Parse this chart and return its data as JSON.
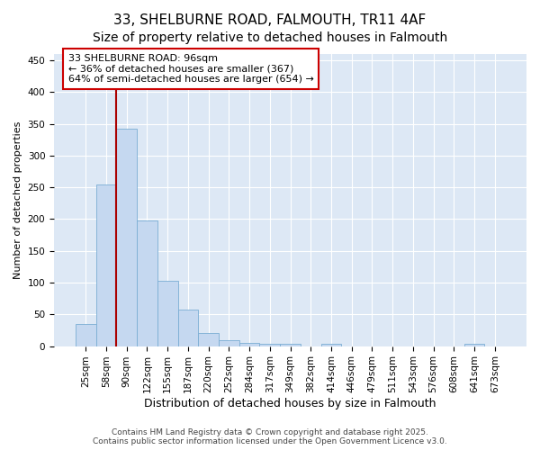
{
  "title": "33, SHELBURNE ROAD, FALMOUTH, TR11 4AF",
  "subtitle": "Size of property relative to detached houses in Falmouth",
  "xlabel": "Distribution of detached houses by size in Falmouth",
  "ylabel": "Number of detached properties",
  "categories": [
    "25sqm",
    "58sqm",
    "90sqm",
    "122sqm",
    "155sqm",
    "187sqm",
    "220sqm",
    "252sqm",
    "284sqm",
    "317sqm",
    "349sqm",
    "382sqm",
    "414sqm",
    "446sqm",
    "479sqm",
    "511sqm",
    "543sqm",
    "576sqm",
    "608sqm",
    "641sqm",
    "673sqm"
  ],
  "values": [
    35,
    255,
    342,
    198,
    103,
    57,
    20,
    10,
    5,
    4,
    3,
    0,
    3,
    0,
    0,
    0,
    0,
    0,
    0,
    4,
    0
  ],
  "bar_color": "#c5d8f0",
  "bar_edge_color": "#7aadd4",
  "vline_x": 2,
  "vline_color": "#aa0000",
  "annotation_text": "33 SHELBURNE ROAD: 96sqm\n← 36% of detached houses are smaller (367)\n64% of semi-detached houses are larger (654) →",
  "annotation_box_color": "#ffffff",
  "annotation_box_edge": "#cc0000",
  "ylim": [
    0,
    460
  ],
  "yticks": [
    0,
    50,
    100,
    150,
    200,
    250,
    300,
    350,
    400,
    450
  ],
  "footnote": "Contains HM Land Registry data © Crown copyright and database right 2025.\nContains public sector information licensed under the Open Government Licence v3.0.",
  "figure_bg": "#ffffff",
  "plot_bg": "#dde8f5",
  "grid_color": "#ffffff",
  "title_fontsize": 11,
  "xlabel_fontsize": 9,
  "ylabel_fontsize": 8,
  "tick_fontsize": 7.5,
  "annotation_fontsize": 8,
  "footnote_fontsize": 6.5
}
